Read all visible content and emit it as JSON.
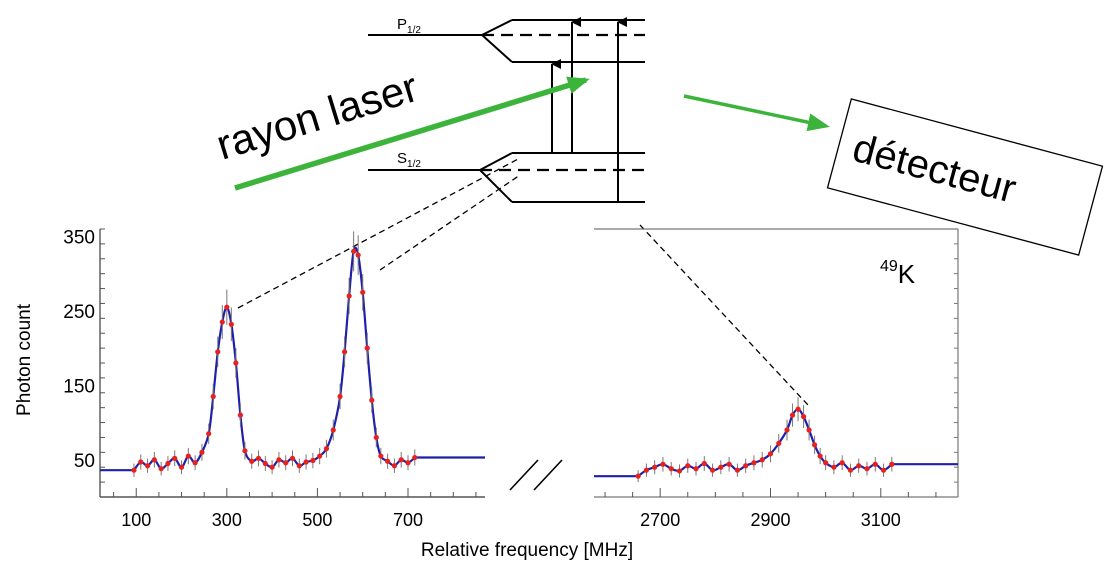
{
  "diagram": {
    "level_upper": "P",
    "level_upper_sub": "1/2",
    "level_lower": "S",
    "level_lower_sub": "1/2",
    "laser_label": "rayon laser",
    "detector_label": "détecteur",
    "arrow_color": "#3cb43c"
  },
  "chart_data": {
    "type": "scatter",
    "ylabel": "Photon count",
    "xlabel": "Relative frequency [MHz]",
    "isotope_sup": "49",
    "isotope": "K",
    "ylim": [
      0,
      360
    ],
    "y_ticks": [
      50,
      150,
      250,
      350
    ],
    "panels": [
      {
        "xlim": [
          20,
          870
        ],
        "x_ticks": [
          100,
          300,
          500,
          700
        ]
      },
      {
        "xlim": [
          2580,
          3240
        ],
        "x_ticks": [
          2700,
          2900,
          3100
        ]
      }
    ],
    "fit_color": "#1f1fa8",
    "point_color": "#e8201e",
    "series": [
      {
        "x": [
          95,
          110,
          125,
          140,
          155,
          170,
          185,
          200,
          215,
          230,
          245,
          260,
          270,
          280,
          290,
          300,
          310,
          320,
          330,
          340,
          355,
          370,
          385,
          400,
          415,
          430,
          445,
          460,
          475,
          490,
          505,
          520,
          535,
          550,
          560,
          570,
          580,
          590,
          600,
          610,
          620,
          630,
          640,
          655,
          670,
          685,
          700,
          715
        ],
        "y": [
          36,
          47,
          42,
          50,
          38,
          45,
          52,
          40,
          55,
          46,
          60,
          85,
          135,
          195,
          235,
          255,
          232,
          180,
          110,
          62,
          48,
          52,
          45,
          40,
          50,
          46,
          52,
          42,
          47,
          49,
          55,
          65,
          90,
          135,
          195,
          270,
          330,
          325,
          275,
          200,
          130,
          80,
          55,
          48,
          42,
          50,
          46,
          53
        ]
      },
      {
        "x": [
          2660,
          2675,
          2690,
          2705,
          2720,
          2735,
          2750,
          2765,
          2780,
          2795,
          2810,
          2825,
          2840,
          2855,
          2870,
          2885,
          2900,
          2915,
          2930,
          2940,
          2950,
          2960,
          2970,
          2980,
          2990,
          3000,
          3015,
          3030,
          3045,
          3060,
          3075,
          3090,
          3105,
          3120
        ],
        "y": [
          28,
          36,
          40,
          44,
          38,
          35,
          42,
          38,
          45,
          36,
          40,
          44,
          36,
          42,
          46,
          50,
          58,
          72,
          90,
          110,
          118,
          108,
          90,
          70,
          55,
          46,
          40,
          46,
          36,
          42,
          38,
          44,
          36,
          44
        ]
      }
    ]
  }
}
